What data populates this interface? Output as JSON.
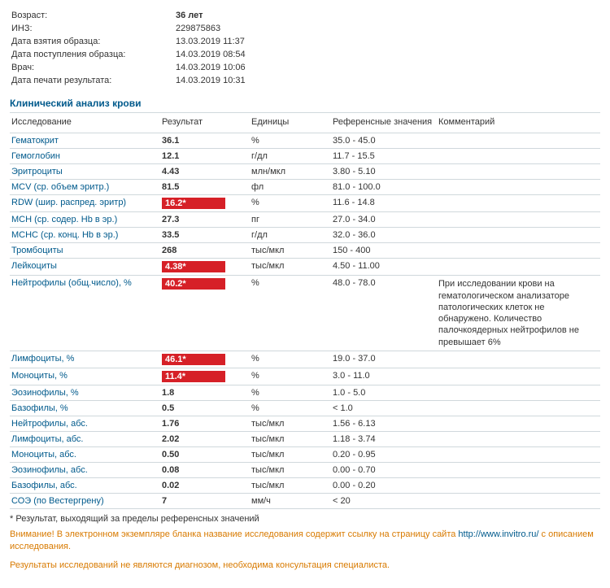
{
  "header": {
    "rows": [
      {
        "label": "Возраст:",
        "value": "36 лет",
        "bold": true
      },
      {
        "label": "ИНЗ:",
        "value": "229875863"
      },
      {
        "label": "Дата взятия образца:",
        "value": "13.03.2019 11:37"
      },
      {
        "label": "Дата поступления образца:",
        "value": "14.03.2019 08:54"
      },
      {
        "label": "Врач:",
        "value": "14.03.2019 10:06"
      },
      {
        "label": "Дата печати результата:",
        "value": "14.03.2019 10:31"
      }
    ]
  },
  "section_title": "Клинический анализ крови",
  "columns": {
    "name": "Исследование",
    "result": "Результат",
    "unit": "Единицы",
    "ref": "Референсные значения",
    "comment": "Комментарий"
  },
  "rows": [
    {
      "name": "Гематокрит",
      "result": "36.1",
      "unit": "%",
      "ref": "35.0 - 45.0",
      "comment": "",
      "flag": false
    },
    {
      "name": "Гемоглобин",
      "result": "12.1",
      "unit": "г/дл",
      "ref": "11.7 - 15.5",
      "comment": "",
      "flag": false
    },
    {
      "name": "Эритроциты",
      "result": "4.43",
      "unit": "млн/мкл",
      "ref": "3.80 - 5.10",
      "comment": "",
      "flag": false
    },
    {
      "name": "MCV (ср. объем эритр.)",
      "result": "81.5",
      "unit": "фл",
      "ref": "81.0 - 100.0",
      "comment": "",
      "flag": false
    },
    {
      "name": "RDW (шир. распред. эритр)",
      "result": "16.2*",
      "unit": "%",
      "ref": "11.6 - 14.8",
      "comment": "",
      "flag": true
    },
    {
      "name": "MCH (ср. содер. Hb в эр.)",
      "result": "27.3",
      "unit": "пг",
      "ref": "27.0 - 34.0",
      "comment": "",
      "flag": false
    },
    {
      "name": "MCHC (ср. конц. Hb в эр.)",
      "result": "33.5",
      "unit": "г/дл",
      "ref": "32.0 - 36.0",
      "comment": "",
      "flag": false
    },
    {
      "name": "Тромбоциты",
      "result": "268",
      "unit": "тыс/мкл",
      "ref": "150 - 400",
      "comment": "",
      "flag": false
    },
    {
      "name": "Лейкоциты",
      "result": "4.38*",
      "unit": "тыс/мкл",
      "ref": "4.50 - 11.00",
      "comment": "",
      "flag": true
    },
    {
      "name": "Нейтрофилы (общ.число), %",
      "result": "40.2*",
      "unit": "%",
      "ref": "48.0 - 78.0",
      "comment": "При исследовании крови на гематологическом анализаторе патологических клеток не обнаружено. Количество палочкоядерных нейтрофилов не превышает 6%",
      "flag": true
    },
    {
      "name": "Лимфоциты, %",
      "result": "46.1*",
      "unit": "%",
      "ref": "19.0 - 37.0",
      "comment": "",
      "flag": true
    },
    {
      "name": "Моноциты, %",
      "result": "11.4*",
      "unit": "%",
      "ref": "3.0 - 11.0",
      "comment": "",
      "flag": true
    },
    {
      "name": "Эозинофилы, %",
      "result": "1.8",
      "unit": "%",
      "ref": "1.0 - 5.0",
      "comment": "",
      "flag": false
    },
    {
      "name": "Базофилы, %",
      "result": "0.5",
      "unit": "%",
      "ref": "< 1.0",
      "comment": "",
      "flag": false
    },
    {
      "name": "Нейтрофилы, абс.",
      "result": "1.76",
      "unit": "тыс/мкл",
      "ref": "1.56 - 6.13",
      "comment": "",
      "flag": false
    },
    {
      "name": "Лимфоциты, абс.",
      "result": "2.02",
      "unit": "тыс/мкл",
      "ref": "1.18 - 3.74",
      "comment": "",
      "flag": false
    },
    {
      "name": "Моноциты, абс.",
      "result": "0.50",
      "unit": "тыс/мкл",
      "ref": "0.20 - 0.95",
      "comment": "",
      "flag": false
    },
    {
      "name": "Эозинофилы, абс.",
      "result": "0.08",
      "unit": "тыс/мкл",
      "ref": "0.00 - 0.70",
      "comment": "",
      "flag": false
    },
    {
      "name": "Базофилы, абс.",
      "result": "0.02",
      "unit": "тыс/мкл",
      "ref": "0.00 - 0.20",
      "comment": "",
      "flag": false
    },
    {
      "name": "СОЭ (по Вестергрену)",
      "result": "7",
      "unit": "мм/ч",
      "ref": "< 20",
      "comment": "",
      "flag": false
    }
  ],
  "footnote": "* Результат, выходящий за пределы референсных значений",
  "warning_prefix": "Внимание!",
  "warning_text": " В электронном экземпляре бланка название исследования содержит ссылку на страницу сайта ",
  "warning_link": "http://www.invitro.ru/",
  "warning_suffix": " с описанием исследования.",
  "disclaimer": "Результаты исследований не являются диагнозом, необходима консультация специалиста.",
  "colors": {
    "brand_blue": "#005a8c",
    "flag_red": "#d62027",
    "warn_orange": "#d87a00",
    "border": "#d0d8dc"
  }
}
